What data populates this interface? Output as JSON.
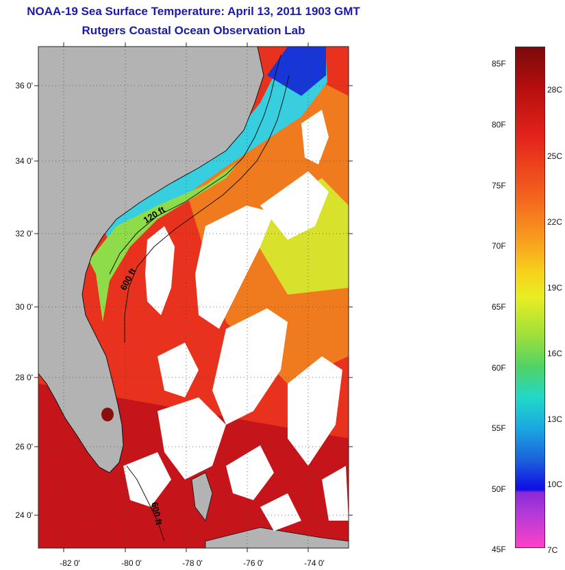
{
  "map": {
    "title": "NOAA-19 Sea Surface Temperature:  April 13, 2011 1903 GMT",
    "subtitle": "Rutgers Coastal Ocean Observation Lab",
    "lat_labels": [
      "36 0'",
      "34 0'",
      "32 0'",
      "30 0'",
      "28 0'",
      "26 0'",
      "24 0'"
    ],
    "lon_labels": [
      "-82 0'",
      "-80 0'",
      "-78 0'",
      "-76 0'",
      "-74 0'"
    ],
    "contour_labels": [
      "120 ft",
      "600 ft",
      "600 ft"
    ],
    "colors": {
      "land": "#b3b3b3",
      "cloud": "#ffffff",
      "warm": "#e3241c",
      "hot": "#b50e12",
      "cool_shelf": "#22c8e6"
    }
  },
  "colorbar": {
    "fahrenheit_labels": [
      "85F",
      "80F",
      "75F",
      "70F",
      "65F",
      "60F",
      "55F",
      "50F",
      "45F"
    ],
    "celsius_labels": [
      "28C",
      "25C",
      "22C",
      "19C",
      "16C",
      "13C",
      "10C",
      "7C"
    ]
  }
}
